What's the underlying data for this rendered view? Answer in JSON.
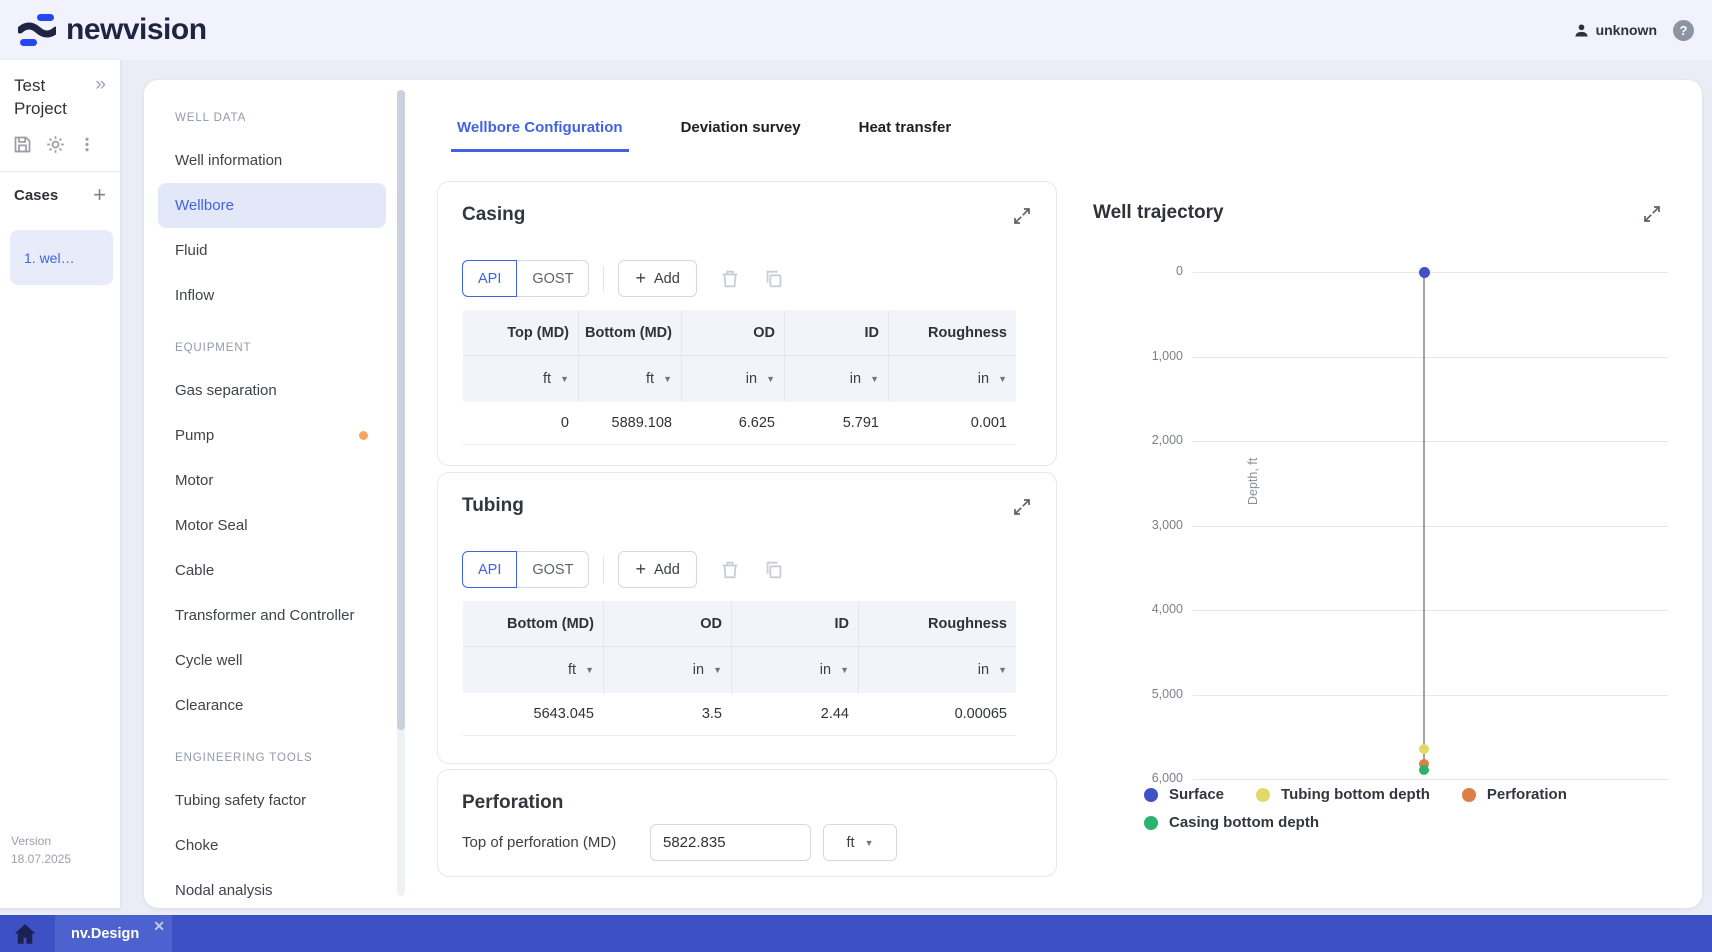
{
  "header": {
    "logo": "newvision",
    "user": "unknown",
    "help": "?"
  },
  "project_panel": {
    "title": "Test Project",
    "cases_label": "Cases",
    "case_item": "1. wel…",
    "version_label": "Version",
    "version_value": "18.07.2025"
  },
  "sidebar": {
    "sections": [
      {
        "label": "WELL DATA",
        "items": [
          {
            "label": "Well information"
          },
          {
            "label": "Wellbore",
            "selected": true
          },
          {
            "label": "Fluid"
          },
          {
            "label": "Inflow"
          }
        ]
      },
      {
        "label": "EQUIPMENT",
        "items": [
          {
            "label": "Gas separation"
          },
          {
            "label": "Pump",
            "badge": true
          },
          {
            "label": "Motor"
          },
          {
            "label": "Motor Seal"
          },
          {
            "label": "Cable"
          },
          {
            "label": "Transformer and Controller"
          },
          {
            "label": "Cycle well"
          },
          {
            "label": "Clearance"
          }
        ]
      },
      {
        "label": "ENGINEERING TOOLS",
        "items": [
          {
            "label": "Tubing safety factor"
          },
          {
            "label": "Choke"
          },
          {
            "label": "Nodal analysis"
          }
        ]
      }
    ]
  },
  "tabs": [
    {
      "label": "Wellbore Configuration",
      "active": true
    },
    {
      "label": "Deviation survey",
      "active": false
    },
    {
      "label": "Heat transfer",
      "active": false
    }
  ],
  "casing": {
    "title": "Casing",
    "standards": [
      "API",
      "GOST"
    ],
    "active_standard": "API",
    "add_label": "Add",
    "table": {
      "columns": [
        "Top (MD)",
        "Bottom (MD)",
        "OD",
        "ID",
        "Roughness"
      ],
      "units": [
        "ft",
        "ft",
        "in",
        "in",
        "in"
      ],
      "rows": [
        [
          "0",
          "5889.108",
          "6.625",
          "5.791",
          "0.001"
        ]
      ]
    }
  },
  "tubing": {
    "title": "Tubing",
    "standards": [
      "API",
      "GOST"
    ],
    "active_standard": "API",
    "add_label": "Add",
    "table": {
      "columns": [
        "Bottom (MD)",
        "OD",
        "ID",
        "Roughness"
      ],
      "units": [
        "ft",
        "in",
        "in",
        "in"
      ],
      "rows": [
        [
          "5643.045",
          "3.5",
          "2.44",
          "0.00065"
        ]
      ]
    }
  },
  "perforation": {
    "title": "Perforation",
    "field_label": "Top of perforation (MD)",
    "value": "5822.835",
    "unit": "ft"
  },
  "chart_data": {
    "type": "scatter",
    "title": "Well trajectory",
    "ylabel": "Depth, ft",
    "ylim": [
      0,
      6000
    ],
    "y_ticks": [
      "0",
      "1,000",
      "2,000",
      "3,000",
      "4,000",
      "5,000",
      "6,000"
    ],
    "grid": true,
    "legend_position": "bottom",
    "series": [
      {
        "name": "Surface",
        "depth": 0,
        "color": "#4153c4"
      },
      {
        "name": "Tubing bottom depth",
        "depth": 5643.045,
        "color": "#e3d968"
      },
      {
        "name": "Perforation",
        "depth": 5822.835,
        "color": "#dd7e45"
      },
      {
        "name": "Casing bottom depth",
        "depth": 5889.108,
        "color": "#2bb26d"
      }
    ]
  },
  "bottom_bar": {
    "tab": "nv.Design",
    "close": "✕"
  },
  "colors": {
    "accent_blue": "#4262e5",
    "selected_bg": "#e3e8f8",
    "badge_orange": "#f2a75f",
    "bar_indigo": "#3d51c4"
  }
}
